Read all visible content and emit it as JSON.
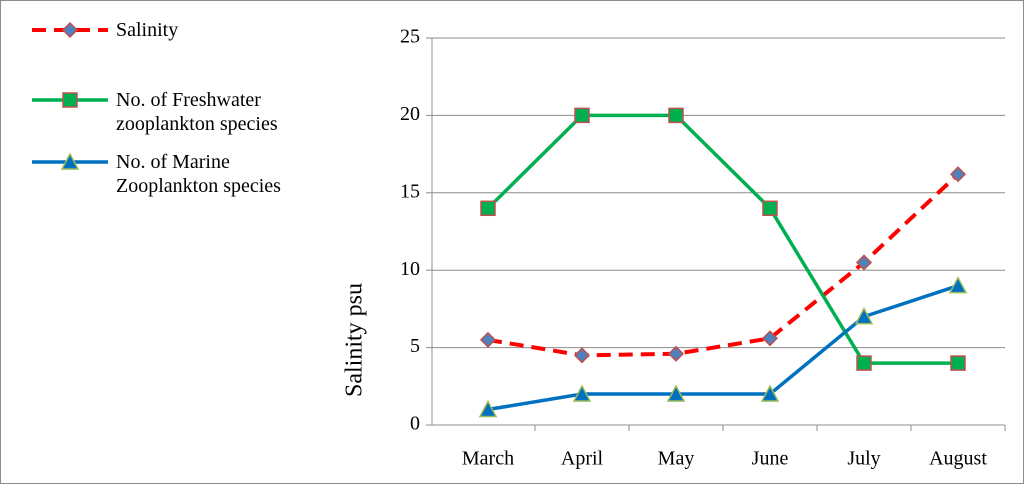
{
  "chart_data": {
    "type": "line",
    "y_label": "Salinity psu",
    "categories": [
      "March",
      "April",
      "May",
      "June",
      "July",
      "August"
    ],
    "series": [
      {
        "name": "Salinity",
        "color": "#ff0000",
        "dash": true,
        "marker": "diamond",
        "marker_fill": "#4f81bd",
        "marker_edge": "#c0504d",
        "values": [
          5.5,
          4.5,
          4.6,
          5.6,
          10.5,
          16.2
        ]
      },
      {
        "name": "No. of Freshwater zooplankton species",
        "color": "#00b050",
        "dash": false,
        "marker": "square",
        "marker_fill": "#00b050",
        "marker_edge": "#c0504d",
        "values": [
          14,
          20,
          20,
          14,
          4,
          4
        ]
      },
      {
        "name": "No. of Marine Zooplankton species",
        "color": "#0070c0",
        "dash": false,
        "marker": "triangle",
        "marker_fill": "#0070c0",
        "marker_edge": "#9bbb59",
        "values": [
          1,
          2,
          2,
          2,
          7,
          9
        ]
      }
    ],
    "ylim": [
      0,
      25
    ],
    "yticks": [
      0,
      5,
      10,
      15,
      20,
      25
    ],
    "grid": true,
    "legend": "top-left"
  }
}
